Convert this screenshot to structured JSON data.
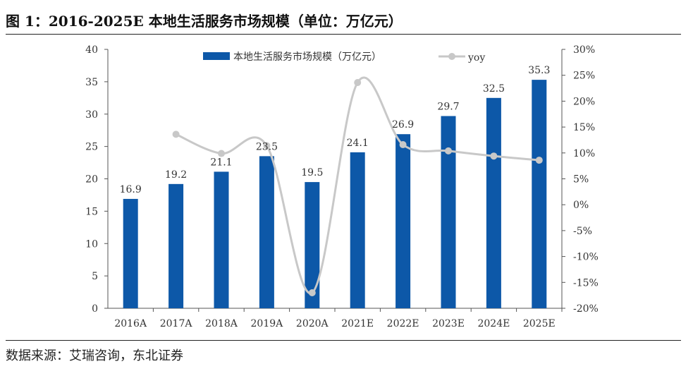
{
  "figure": {
    "title": "图 1：2016-2025E 本地生活服务市场规模（单位：万亿元）",
    "source": "数据来源：艾瑞咨询，东北证券"
  },
  "chart_data": {
    "type": "bar+line",
    "categories": [
      "2016A",
      "2017A",
      "2018A",
      "2019A",
      "2020A",
      "2021E",
      "2022E",
      "2023E",
      "2024E",
      "2025E"
    ],
    "series": [
      {
        "name": "本地生活服务市场规模（万亿元）",
        "type": "bar",
        "axis": "left",
        "values": [
          16.9,
          19.2,
          21.1,
          23.5,
          19.5,
          24.1,
          26.9,
          29.7,
          32.5,
          35.3
        ],
        "labels": [
          "16.9",
          "19.2",
          "21.1",
          "23.5",
          "19.5",
          "24.1",
          "26.9",
          "29.7",
          "32.5",
          "35.3"
        ],
        "color": "#0d58a8"
      },
      {
        "name": "yoy",
        "type": "line",
        "axis": "right",
        "values": [
          null,
          13.6,
          9.9,
          11.4,
          -17.0,
          23.6,
          11.6,
          10.4,
          9.4,
          8.6
        ],
        "color": "#c8c8c8"
      }
    ],
    "left_axis": {
      "min": 0,
      "max": 40,
      "step": 5,
      "ticks": [
        "0",
        "5",
        "10",
        "15",
        "20",
        "25",
        "30",
        "35",
        "40"
      ]
    },
    "right_axis": {
      "min": -20,
      "max": 30,
      "step": 5,
      "ticks": [
        "-20%",
        "-15%",
        "-10%",
        "-5%",
        "0%",
        "5%",
        "10%",
        "15%",
        "20%",
        "25%",
        "30%"
      ]
    },
    "legend_position": "top-center",
    "grid": false
  }
}
